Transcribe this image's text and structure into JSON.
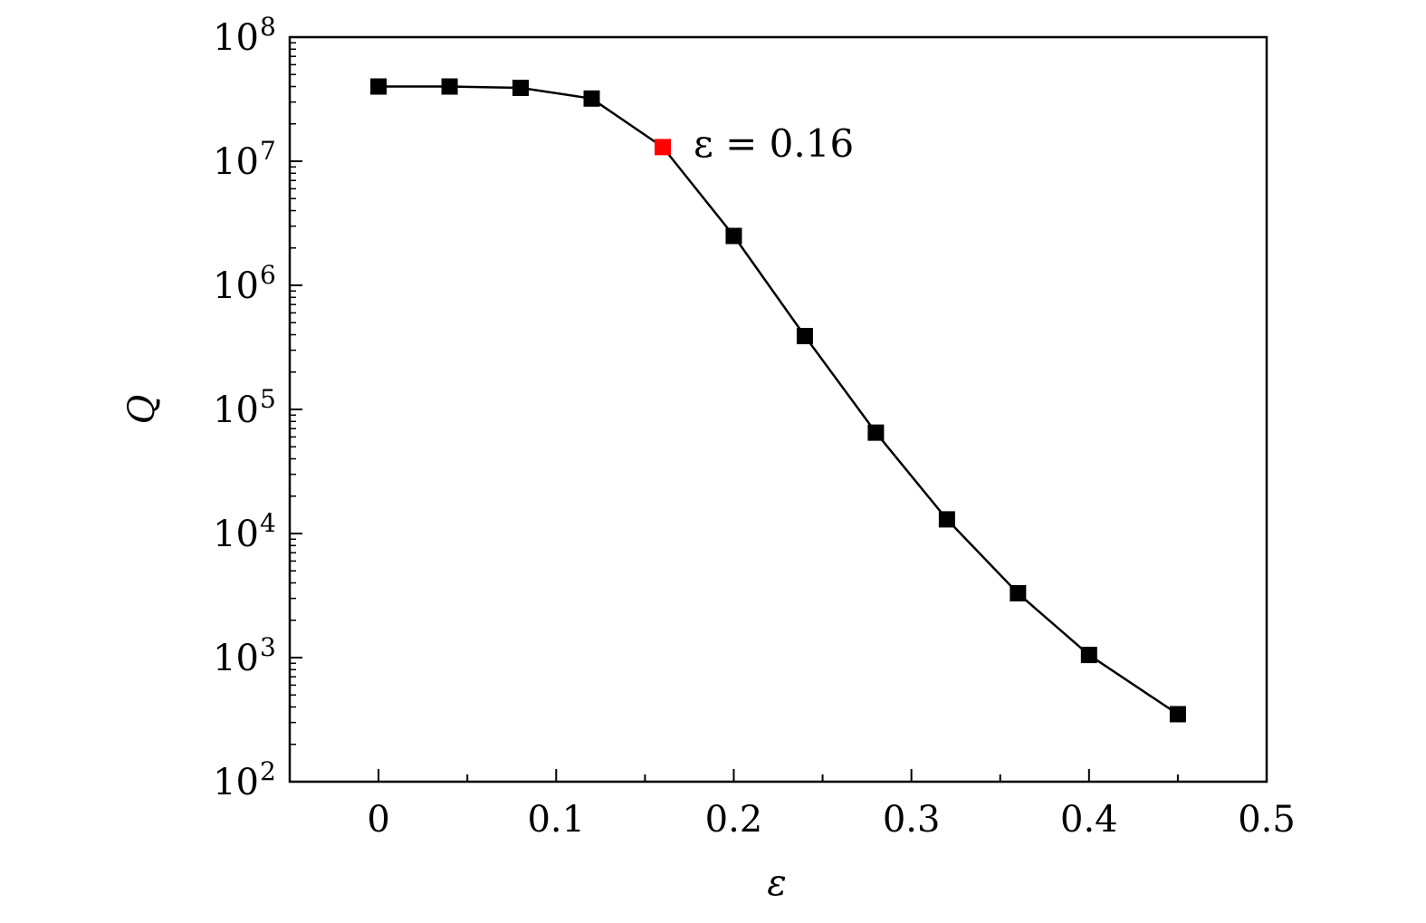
{
  "chart_data": {
    "type": "line",
    "title": "",
    "xlabel": "ε",
    "ylabel": "Q",
    "xlim": [
      -0.05,
      0.5
    ],
    "ylim": [
      100,
      100000000
    ],
    "yscale": "log",
    "grid": false,
    "legend": "none",
    "x_ticks": [
      0,
      0.1,
      0.2,
      0.3,
      0.4,
      0.5
    ],
    "x_tick_labels": [
      "0",
      "0.1",
      "0.2",
      "0.3",
      "0.4",
      "0.5"
    ],
    "y_ticks": [
      {
        "base": "10",
        "exp": "2",
        "value": 100
      },
      {
        "base": "10",
        "exp": "3",
        "value": 1000
      },
      {
        "base": "10",
        "exp": "4",
        "value": 10000
      },
      {
        "base": "10",
        "exp": "5",
        "value": 100000
      },
      {
        "base": "10",
        "exp": "6",
        "value": 1000000
      },
      {
        "base": "10",
        "exp": "7",
        "value": 10000000
      },
      {
        "base": "10",
        "exp": "8",
        "value": 100000000
      }
    ],
    "series": [
      {
        "color": "#000000",
        "marker": "square",
        "x": [
          0,
          0.04,
          0.08,
          0.12,
          0.16,
          0.2,
          0.24,
          0.28,
          0.32,
          0.36,
          0.4,
          0.45
        ],
        "y": [
          40000000,
          40000000,
          39000000,
          32000000,
          13000000,
          2500000,
          390000,
          65000,
          13000,
          3300,
          1050,
          350
        ]
      }
    ],
    "highlight": {
      "x": 0.16,
      "y": 13000000,
      "color": "#ff0000"
    },
    "annotation": {
      "text": "ε = 0.16",
      "color": "#ff0000"
    }
  }
}
